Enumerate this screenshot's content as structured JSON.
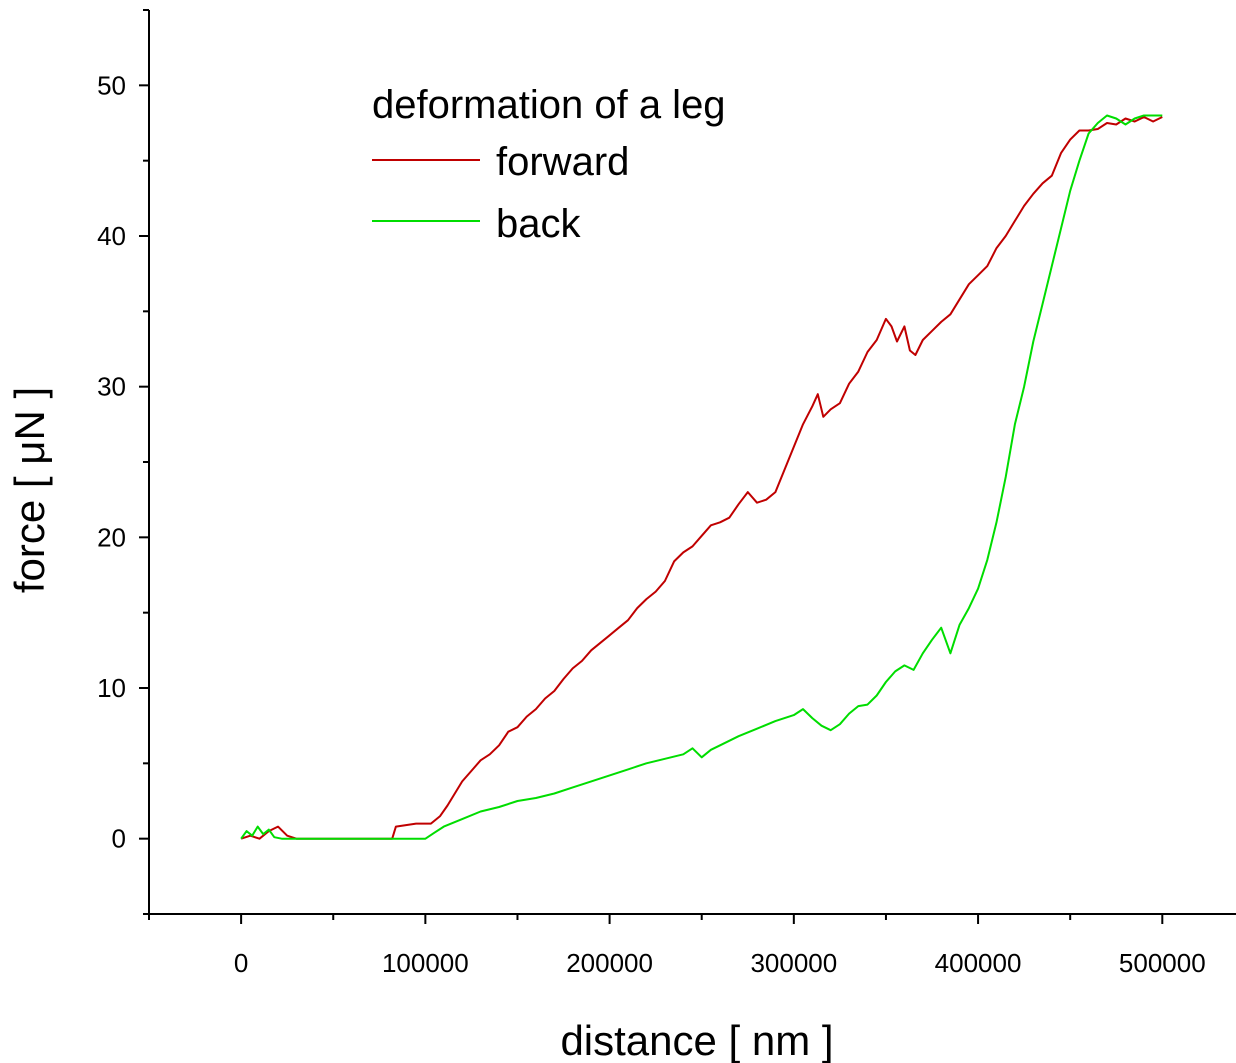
{
  "chart_data": {
    "type": "line",
    "title": "",
    "xlabel": "distance [ nm ]",
    "ylabel": "force [ μN ]",
    "xlim": [
      -50000,
      540000
    ],
    "ylim": [
      -5,
      55
    ],
    "xticks": [
      0,
      100000,
      200000,
      300000,
      400000,
      500000
    ],
    "xtick_labels": [
      "0",
      "100000",
      "200000",
      "300000",
      "400000",
      "500000"
    ],
    "yticks": [
      0,
      10,
      20,
      30,
      40,
      50
    ],
    "ytick_labels": [
      "0",
      "10",
      "20",
      "30",
      "40",
      "50"
    ],
    "grid": false,
    "legend": {
      "title": "deformation of a leg",
      "position": "top-left",
      "entries": [
        "forward",
        "back"
      ]
    },
    "colors": {
      "forward": "#c00000",
      "back": "#00dd00"
    },
    "series": [
      {
        "name": "forward",
        "x": [
          0,
          5000,
          10000,
          15000,
          20000,
          25000,
          30000,
          50000,
          70000,
          82000,
          84000,
          95000,
          103000,
          108000,
          112000,
          120000,
          125000,
          130000,
          135000,
          140000,
          145000,
          150000,
          155000,
          160000,
          165000,
          170000,
          175000,
          180000,
          185000,
          190000,
          195000,
          200000,
          205000,
          210000,
          215000,
          220000,
          225000,
          230000,
          235000,
          240000,
          245000,
          250000,
          255000,
          260000,
          265000,
          270000,
          275000,
          280000,
          285000,
          290000,
          295000,
          300000,
          305000,
          310000,
          313000,
          316000,
          320000,
          325000,
          330000,
          335000,
          340000,
          345000,
          350000,
          353000,
          356000,
          360000,
          363000,
          366000,
          370000,
          375000,
          380000,
          385000,
          390000,
          395000,
          400000,
          405000,
          410000,
          415000,
          420000,
          425000,
          430000,
          435000,
          440000,
          445000,
          450000,
          455000,
          460000,
          465000,
          470000,
          475000,
          480000,
          485000,
          490000,
          495000,
          500000
        ],
        "y": [
          0,
          0.2,
          0,
          0.5,
          0.8,
          0.2,
          0,
          0,
          0,
          0,
          0.8,
          1,
          1,
          1.5,
          2.2,
          3.8,
          4.5,
          5.2,
          5.6,
          6.2,
          7.1,
          7.4,
          8.1,
          8.6,
          9.3,
          9.8,
          10.6,
          11.3,
          11.8,
          12.5,
          13.0,
          13.5,
          14.0,
          14.5,
          15.3,
          15.9,
          16.4,
          17.1,
          18.4,
          19.0,
          19.4,
          20.1,
          20.8,
          21.0,
          21.3,
          22.2,
          23.0,
          22.3,
          22.5,
          23.0,
          24.5,
          26.0,
          27.5,
          28.7,
          29.5,
          28.0,
          28.5,
          28.9,
          30.2,
          31.0,
          32.3,
          33.1,
          34.5,
          34.0,
          33.0,
          34.0,
          32.4,
          32.1,
          33.1,
          33.7,
          34.3,
          34.8,
          35.8,
          36.8,
          37.4,
          38.0,
          39.2,
          40.0,
          41.0,
          42.0,
          42.8,
          43.5,
          44.0,
          45.5,
          46.4,
          47.0,
          47.0,
          47.1,
          47.5,
          47.4,
          47.8,
          47.6,
          47.9,
          47.6,
          47.9
        ]
      },
      {
        "name": "back",
        "x": [
          0,
          3000,
          6000,
          9000,
          12000,
          15000,
          18000,
          22000,
          26000,
          30000,
          50000,
          80000,
          100000,
          105000,
          110000,
          120000,
          130000,
          140000,
          150000,
          160000,
          170000,
          180000,
          190000,
          200000,
          210000,
          220000,
          230000,
          240000,
          245000,
          250000,
          255000,
          260000,
          270000,
          280000,
          290000,
          300000,
          305000,
          310000,
          315000,
          320000,
          325000,
          330000,
          335000,
          340000,
          345000,
          350000,
          355000,
          360000,
          365000,
          370000,
          375000,
          380000,
          385000,
          390000,
          395000,
          400000,
          405000,
          410000,
          415000,
          420000,
          425000,
          430000,
          435000,
          440000,
          445000,
          450000,
          455000,
          460000,
          465000,
          470000,
          475000,
          480000,
          485000,
          490000,
          495000,
          500000
        ],
        "y": [
          0,
          0.5,
          0.2,
          0.8,
          0.3,
          0.6,
          0.1,
          0,
          0,
          0,
          0,
          0,
          0,
          0.4,
          0.8,
          1.3,
          1.8,
          2.1,
          2.5,
          2.7,
          3.0,
          3.4,
          3.8,
          4.2,
          4.6,
          5.0,
          5.3,
          5.6,
          6.0,
          5.4,
          5.9,
          6.2,
          6.8,
          7.3,
          7.8,
          8.2,
          8.6,
          8.0,
          7.5,
          7.2,
          7.6,
          8.3,
          8.8,
          8.9,
          9.5,
          10.4,
          11.1,
          11.5,
          11.2,
          12.3,
          13.2,
          14.0,
          12.3,
          14.2,
          15.3,
          16.6,
          18.5,
          21.0,
          24.0,
          27.5,
          30.0,
          33.0,
          35.5,
          38.0,
          40.5,
          43.0,
          45.0,
          46.8,
          47.5,
          48.0,
          47.8,
          47.4,
          47.8,
          48.0,
          48.0,
          48.0
        ]
      }
    ]
  }
}
